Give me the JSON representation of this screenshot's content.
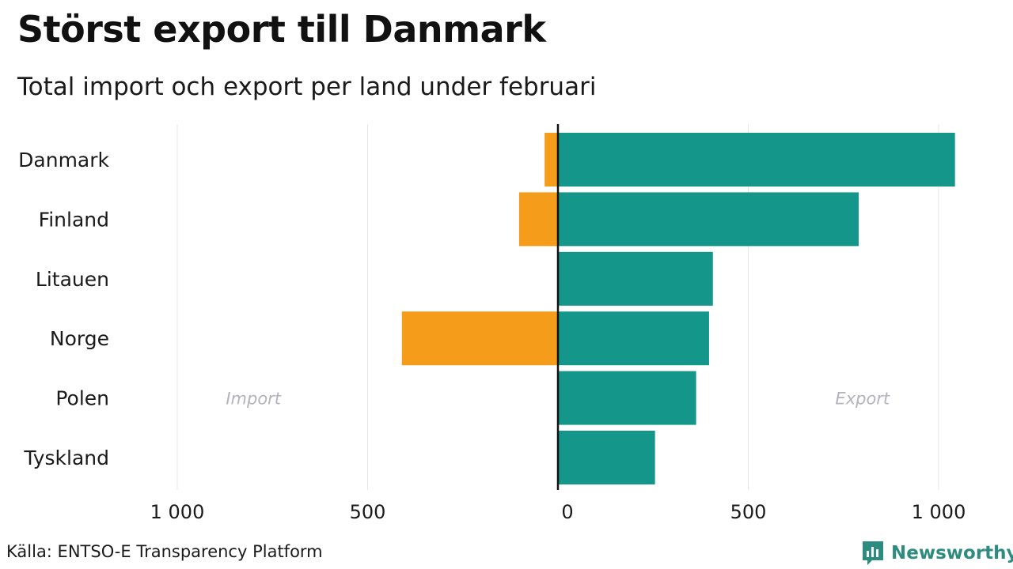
{
  "title": "Störst export till Danmark",
  "subtitle": "Total import och export per land under februari",
  "source": "Källa: ENTSO-E Transparency Platform",
  "brand": {
    "name": "Newsworthy",
    "icon": "newsworthy-chart-icon",
    "color": "#2e8b80"
  },
  "chart_data": {
    "type": "bar",
    "orientation": "horizontal-diverging",
    "categories": [
      "Danmark",
      "Finland",
      "Litauen",
      "Norge",
      "Polen",
      "Tyskland"
    ],
    "series": [
      {
        "name": "Import",
        "values": [
          35,
          102,
          0,
          410,
          0,
          0
        ],
        "color": "#f59c1a"
      },
      {
        "name": "Export",
        "values": [
          1043,
          790,
          407,
          397,
          363,
          255
        ],
        "color": "#14968a"
      }
    ],
    "xlim": [
      -1000,
      1000
    ],
    "x_ticks": [
      -1000,
      -500,
      0,
      500,
      1000
    ],
    "x_tick_labels": [
      "1 000",
      "500",
      "0",
      "500",
      "1 000"
    ],
    "annotations": [
      {
        "text": "Import",
        "x": -800,
        "category": "Polen"
      },
      {
        "text": "Export",
        "x": 800,
        "category": "Polen"
      }
    ],
    "grid": true
  }
}
